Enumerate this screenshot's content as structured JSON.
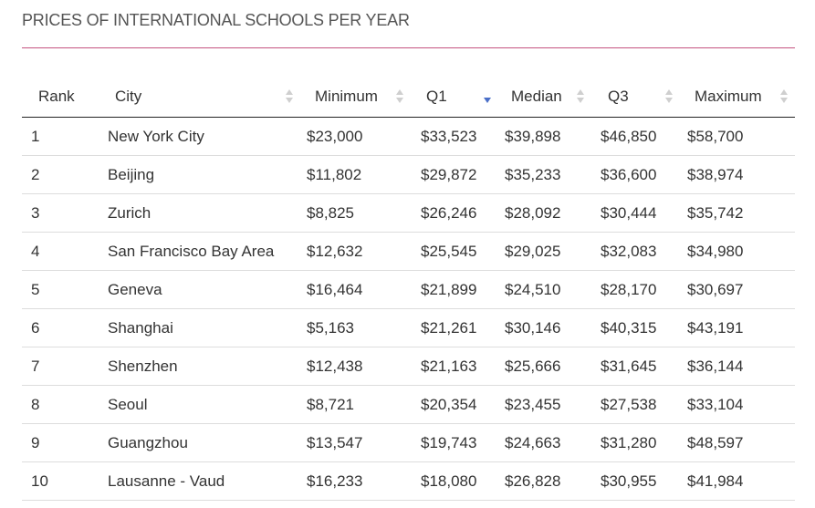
{
  "title": "PRICES OF INTERNATIONAL SCHOOLS PER YEAR",
  "table": {
    "headers": [
      "Rank",
      "City",
      "Minimum",
      "Q1",
      "Median",
      "Q3",
      "Maximum"
    ],
    "sort_icon": "sort-arrows-icon",
    "active_sort_column": "Q1",
    "active_sort_direction": "descending",
    "active_sort_color": "#4a6fc8",
    "rows": [
      [
        "1",
        "New York City",
        "$23,000",
        "$33,523",
        "$39,898",
        "$46,850",
        "$58,700"
      ],
      [
        "2",
        "Beijing",
        "$11,802",
        "$29,872",
        "$35,233",
        "$36,600",
        "$38,974"
      ],
      [
        "3",
        "Zurich",
        "$8,825",
        "$26,246",
        "$28,092",
        "$30,444",
        "$35,742"
      ],
      [
        "4",
        "San Francisco Bay Area",
        "$12,632",
        "$25,545",
        "$29,025",
        "$32,083",
        "$34,980"
      ],
      [
        "5",
        "Geneva",
        "$16,464",
        "$21,899",
        "$24,510",
        "$28,170",
        "$30,697"
      ],
      [
        "6",
        "Shanghai",
        "$5,163",
        "$21,261",
        "$30,146",
        "$40,315",
        "$43,191"
      ],
      [
        "7",
        "Shenzhen",
        "$12,438",
        "$21,163",
        "$25,666",
        "$31,645",
        "$36,144"
      ],
      [
        "8",
        "Seoul",
        "$8,721",
        "$20,354",
        "$23,455",
        "$27,538",
        "$33,104"
      ],
      [
        "9",
        "Guangzhou",
        "$13,547",
        "$19,743",
        "$24,663",
        "$31,280",
        "$48,597"
      ],
      [
        "10",
        "Lausanne - Vaud",
        "$16,233",
        "$18,080",
        "$26,828",
        "$30,955",
        "$41,984"
      ]
    ]
  },
  "colors": {
    "title_rule": "#c5537f",
    "header_rule": "#222222",
    "row_rule": "#dddddd",
    "inactive_sort": "#cfcfcf"
  }
}
